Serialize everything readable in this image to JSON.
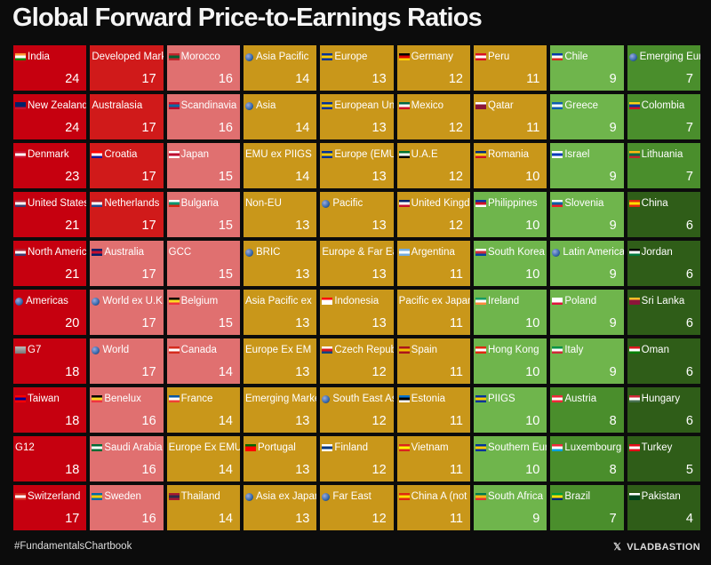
{
  "title": "Global Forward Price-to-Earnings Ratios",
  "footer": {
    "hashtag": "#FundamentalsChartbook",
    "brand": "VLADBASTION",
    "x_icon": "x-logo-icon"
  },
  "colors": {
    "deep_red": "#c6000f",
    "red": "#d01a1a",
    "pink": "#e07070",
    "gold": "#c9971a",
    "light_green": "#6fb54c",
    "green": "#4a8e2c",
    "dark_green": "#2f5d18"
  },
  "chart_data": {
    "type": "heatmap",
    "title": "Global Forward Price-to-Earnings Ratios",
    "columns": [
      {
        "items": [
          {
            "name": "India",
            "value": 24,
            "color": "#c6000f",
            "icon": "flag-india"
          },
          {
            "name": "New Zealand",
            "value": 24,
            "color": "#c6000f",
            "icon": "flag-new-zealand"
          },
          {
            "name": "Denmark",
            "value": 23,
            "color": "#c6000f",
            "icon": "flag-denmark"
          },
          {
            "name": "United States",
            "value": 21,
            "color": "#c6000f",
            "icon": "flag-united-states"
          },
          {
            "name": "North America",
            "value": 21,
            "color": "#c6000f",
            "icon": "flag-united-states"
          },
          {
            "name": "Americas",
            "value": 20,
            "color": "#c6000f",
            "icon": "globe"
          },
          {
            "name": "G7",
            "value": 18,
            "color": "#c6000f",
            "icon": "building"
          },
          {
            "name": "Taiwan",
            "value": 18,
            "color": "#c6000f",
            "icon": "flag-taiwan"
          },
          {
            "name": "G12",
            "value": 18,
            "color": "#c6000f",
            "icon": "none"
          },
          {
            "name": "Switzerland",
            "value": 17,
            "color": "#c6000f",
            "icon": "flag-switzerland"
          }
        ]
      },
      {
        "items": [
          {
            "name": "Developed Markets",
            "value": 17,
            "color": "#d01a1a",
            "icon": "none"
          },
          {
            "name": "Australasia",
            "value": 17,
            "color": "#d01a1a",
            "icon": "none"
          },
          {
            "name": "Croatia",
            "value": 17,
            "color": "#d01a1a",
            "icon": "flag-croatia"
          },
          {
            "name": "Netherlands",
            "value": 17,
            "color": "#d01a1a",
            "icon": "flag-netherlands"
          },
          {
            "name": "Australia",
            "value": 17,
            "color": "#e07070",
            "icon": "flag-australia"
          },
          {
            "name": "World ex U.K.",
            "value": 17,
            "color": "#e07070",
            "icon": "globe"
          },
          {
            "name": "World",
            "value": 17,
            "color": "#e07070",
            "icon": "globe"
          },
          {
            "name": "Benelux",
            "value": 16,
            "color": "#e07070",
            "icon": "flag-benelux"
          },
          {
            "name": "Saudi Arabia",
            "value": 16,
            "color": "#e07070",
            "icon": "flag-saudi-arabia"
          },
          {
            "name": "Sweden",
            "value": 16,
            "color": "#e07070",
            "icon": "flag-sweden"
          }
        ]
      },
      {
        "items": [
          {
            "name": "Morocco",
            "value": 16,
            "color": "#e07070",
            "icon": "flag-morocco"
          },
          {
            "name": "Scandinavia",
            "value": 16,
            "color": "#e07070",
            "icon": "flag-scandinavia"
          },
          {
            "name": "Japan",
            "value": 15,
            "color": "#e07070",
            "icon": "flag-japan"
          },
          {
            "name": "Bulgaria",
            "value": 15,
            "color": "#e07070",
            "icon": "flag-bulgaria"
          },
          {
            "name": "GCC",
            "value": 15,
            "color": "#e07070",
            "icon": "none"
          },
          {
            "name": "Belgium",
            "value": 15,
            "color": "#e07070",
            "icon": "flag-belgium"
          },
          {
            "name": "Canada",
            "value": 14,
            "color": "#e07070",
            "icon": "flag-canada"
          },
          {
            "name": "France",
            "value": 14,
            "color": "#c9971a",
            "icon": "flag-france"
          },
          {
            "name": "Europe Ex EMU",
            "value": 14,
            "color": "#c9971a",
            "icon": "none"
          },
          {
            "name": "Thailand",
            "value": 14,
            "color": "#c9971a",
            "icon": "flag-thailand"
          }
        ]
      },
      {
        "items": [
          {
            "name": "Asia Pacific",
            "value": 14,
            "color": "#c9971a",
            "icon": "globe"
          },
          {
            "name": "Asia",
            "value": 14,
            "color": "#c9971a",
            "icon": "globe"
          },
          {
            "name": "EMU ex PIIGS",
            "value": 14,
            "color": "#c9971a",
            "icon": "none"
          },
          {
            "name": "Non-EU",
            "value": 13,
            "color": "#c9971a",
            "icon": "none"
          },
          {
            "name": "BRIC",
            "value": 13,
            "color": "#c9971a",
            "icon": "globe"
          },
          {
            "name": "Asia Pacific ex",
            "value": 13,
            "color": "#c9971a",
            "icon": "none"
          },
          {
            "name": "Europe Ex EM",
            "value": 13,
            "color": "#c9971a",
            "icon": "none"
          },
          {
            "name": "Emerging Markets",
            "value": 13,
            "color": "#c9971a",
            "icon": "none"
          },
          {
            "name": "Portugal",
            "value": 13,
            "color": "#c9971a",
            "icon": "flag-portugal"
          },
          {
            "name": "Asia ex Japan",
            "value": 13,
            "color": "#c9971a",
            "icon": "globe"
          }
        ]
      },
      {
        "items": [
          {
            "name": "Europe",
            "value": 13,
            "color": "#c9971a",
            "icon": "flag-eu"
          },
          {
            "name": "European Union",
            "value": 13,
            "color": "#c9971a",
            "icon": "flag-eu"
          },
          {
            "name": "Europe (EMU)",
            "value": 13,
            "color": "#c9971a",
            "icon": "flag-eu"
          },
          {
            "name": "Pacific",
            "value": 13,
            "color": "#c9971a",
            "icon": "globe"
          },
          {
            "name": "Europe & Far East",
            "value": 13,
            "color": "#c9971a",
            "icon": "none"
          },
          {
            "name": "Indonesia",
            "value": 13,
            "color": "#c9971a",
            "icon": "flag-indonesia"
          },
          {
            "name": "Czech Republic",
            "value": 12,
            "color": "#c9971a",
            "icon": "flag-czech-republic"
          },
          {
            "name": "South East Asia",
            "value": 12,
            "color": "#c9971a",
            "icon": "globe"
          },
          {
            "name": "Finland",
            "value": 12,
            "color": "#c9971a",
            "icon": "flag-finland"
          },
          {
            "name": "Far East",
            "value": 12,
            "color": "#c9971a",
            "icon": "globe"
          }
        ]
      },
      {
        "items": [
          {
            "name": "Germany",
            "value": 12,
            "color": "#c9971a",
            "icon": "flag-germany"
          },
          {
            "name": "Mexico",
            "value": 12,
            "color": "#c9971a",
            "icon": "flag-mexico"
          },
          {
            "name": "U.A.E",
            "value": 12,
            "color": "#c9971a",
            "icon": "flag-uae"
          },
          {
            "name": "United Kingdom",
            "value": 12,
            "color": "#c9971a",
            "icon": "flag-united-kingdom"
          },
          {
            "name": "Argentina",
            "value": 11,
            "color": "#c9971a",
            "icon": "flag-argentina"
          },
          {
            "name": "Pacific ex Japan",
            "value": 11,
            "color": "#c9971a",
            "icon": "none"
          },
          {
            "name": "Spain",
            "value": 11,
            "color": "#c9971a",
            "icon": "flag-spain"
          },
          {
            "name": "Estonia",
            "value": 11,
            "color": "#c9971a",
            "icon": "flag-estonia"
          },
          {
            "name": "Vietnam",
            "value": 11,
            "color": "#c9971a",
            "icon": "flag-vietnam"
          },
          {
            "name": "China A (not",
            "value": 11,
            "color": "#c9971a",
            "icon": "flag-china"
          }
        ]
      },
      {
        "items": [
          {
            "name": "Peru",
            "value": 11,
            "color": "#c9971a",
            "icon": "flag-peru"
          },
          {
            "name": "Qatar",
            "value": 11,
            "color": "#c9971a",
            "icon": "flag-qatar"
          },
          {
            "name": "Romania",
            "value": 10,
            "color": "#c9971a",
            "icon": "flag-romania"
          },
          {
            "name": "Philippines",
            "value": 10,
            "color": "#6fb54c",
            "icon": "flag-philippines"
          },
          {
            "name": "South Korea",
            "value": 10,
            "color": "#6fb54c",
            "icon": "flag-south-korea"
          },
          {
            "name": "Ireland",
            "value": 10,
            "color": "#6fb54c",
            "icon": "flag-ireland"
          },
          {
            "name": "Hong Kong",
            "value": 10,
            "color": "#6fb54c",
            "icon": "flag-hong-kong"
          },
          {
            "name": "PIIGS",
            "value": 10,
            "color": "#6fb54c",
            "icon": "flag-eu"
          },
          {
            "name": "Southern Europe",
            "value": 10,
            "color": "#6fb54c",
            "icon": "flag-eu"
          },
          {
            "name": "South Africa",
            "value": 9,
            "color": "#6fb54c",
            "icon": "flag-south-africa"
          }
        ]
      },
      {
        "items": [
          {
            "name": "Chile",
            "value": 9,
            "color": "#6fb54c",
            "icon": "flag-chile"
          },
          {
            "name": "Greece",
            "value": 9,
            "color": "#6fb54c",
            "icon": "flag-greece"
          },
          {
            "name": "Israel",
            "value": 9,
            "color": "#6fb54c",
            "icon": "flag-israel"
          },
          {
            "name": "Slovenia",
            "value": 9,
            "color": "#6fb54c",
            "icon": "flag-slovenia"
          },
          {
            "name": "Latin America",
            "value": 9,
            "color": "#6fb54c",
            "icon": "globe"
          },
          {
            "name": "Poland",
            "value": 9,
            "color": "#6fb54c",
            "icon": "flag-poland"
          },
          {
            "name": "Italy",
            "value": 9,
            "color": "#6fb54c",
            "icon": "flag-italy"
          },
          {
            "name": "Austria",
            "value": 8,
            "color": "#4a8e2c",
            "icon": "flag-austria"
          },
          {
            "name": "Luxembourg",
            "value": 8,
            "color": "#4a8e2c",
            "icon": "flag-luxembourg"
          },
          {
            "name": "Brazil",
            "value": 7,
            "color": "#4a8e2c",
            "icon": "flag-brazil"
          }
        ]
      },
      {
        "items": [
          {
            "name": "Emerging Europe",
            "value": 7,
            "color": "#4a8e2c",
            "icon": "globe"
          },
          {
            "name": "Colombia",
            "value": 7,
            "color": "#4a8e2c",
            "icon": "flag-colombia"
          },
          {
            "name": "Lithuania",
            "value": 7,
            "color": "#4a8e2c",
            "icon": "flag-lithuania"
          },
          {
            "name": "China",
            "value": 6,
            "color": "#2f5d18",
            "icon": "flag-china"
          },
          {
            "name": "Jordan",
            "value": 6,
            "color": "#2f5d18",
            "icon": "flag-jordan"
          },
          {
            "name": "Sri Lanka",
            "value": 6,
            "color": "#2f5d18",
            "icon": "flag-sri-lanka"
          },
          {
            "name": "Oman",
            "value": 6,
            "color": "#2f5d18",
            "icon": "flag-oman"
          },
          {
            "name": "Hungary",
            "value": 6,
            "color": "#2f5d18",
            "icon": "flag-hungary"
          },
          {
            "name": "Turkey",
            "value": 5,
            "color": "#2f5d18",
            "icon": "flag-turkey"
          },
          {
            "name": "Pakistan",
            "value": 4,
            "color": "#2f5d18",
            "icon": "flag-pakistan"
          }
        ]
      }
    ]
  }
}
